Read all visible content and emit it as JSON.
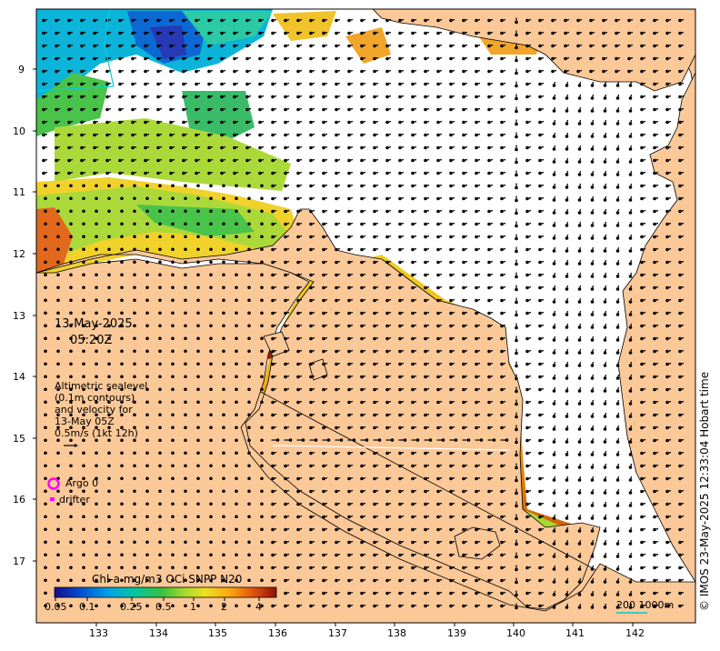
{
  "map": {
    "date": "13-May-2025",
    "time": "05:20Z",
    "legend_text": [
      "Altimetric sealevel",
      "(0.1m contours)",
      "and velocity for",
      "13-May 05Z",
      "0.5m/s (1kt 12h)"
    ],
    "argo_label": "Argo 0",
    "drifter_label": "drifter",
    "colorbar_title": "Chl-a mg/m3 OCi SNPP N20",
    "colorbar_ticks": [
      "0.05",
      "0.1",
      "0.25",
      "0.5",
      "1",
      "2",
      "4"
    ],
    "scale_label": "200  1000m",
    "credit": "© IMOS 23-May-2025 12:33:04 Hobart time",
    "x_ticks": [
      "133",
      "134",
      "135",
      "136",
      "137",
      "138",
      "139",
      "140",
      "141",
      "142"
    ],
    "y_ticks": [
      "9",
      "10",
      "11",
      "12",
      "13",
      "14",
      "15",
      "16",
      "17"
    ],
    "colors": {
      "land": "#fbc898",
      "ocean": "#ffffff",
      "argo": "#ff00ff",
      "colormap": [
        "#1a0a8c",
        "#0050d0",
        "#00a0e8",
        "#00c8a0",
        "#38c040",
        "#a0d830",
        "#f0e020",
        "#f8a010",
        "#e05010",
        "#901008"
      ]
    }
  }
}
